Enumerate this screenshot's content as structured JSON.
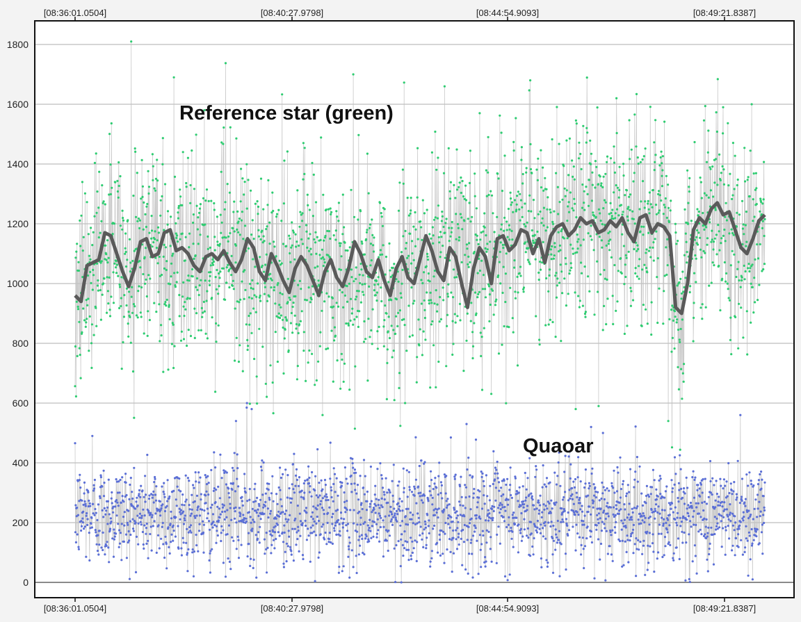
{
  "chart_data": {
    "type": "scatter",
    "title": "",
    "xlabel": "",
    "ylabel": "",
    "ylim": [
      0,
      1900
    ],
    "y_ticks": [
      0,
      200,
      400,
      600,
      800,
      1000,
      1200,
      1400,
      1600,
      1800
    ],
    "time_labels": [
      "[08:36:01.0504]",
      "[08:40:27.9798]",
      "[08:44:54.9093]",
      "[08:49:21.8387]"
    ],
    "grid": true,
    "annotations": [
      {
        "text": "Reference star (green)",
        "series": "reference"
      },
      {
        "text": "Quaoar",
        "series": "target"
      }
    ],
    "series": [
      {
        "key": "reference",
        "color": "#2ecc71",
        "kind": "points",
        "mean_profile": [
          [
            0,
            960
          ],
          [
            30,
            1070
          ],
          [
            55,
            1160
          ],
          [
            80,
            1000
          ],
          [
            110,
            1150
          ],
          [
            140,
            1040
          ],
          [
            170,
            1100
          ],
          [
            200,
            1060
          ],
          [
            230,
            1080
          ],
          [
            260,
            1040
          ],
          [
            300,
            980
          ],
          [
            330,
            1070
          ],
          [
            360,
            1020
          ],
          [
            390,
            1000
          ],
          [
            420,
            1080
          ],
          [
            450,
            960
          ],
          [
            480,
            1060
          ],
          [
            510,
            1010
          ],
          [
            540,
            1150
          ],
          [
            570,
            1060
          ],
          [
            585,
            990
          ],
          [
            600,
            1130
          ],
          [
            620,
            1100
          ],
          [
            640,
            1180
          ],
          [
            660,
            1150
          ],
          [
            700,
            1190
          ],
          [
            740,
            1220
          ],
          [
            770,
            1200
          ],
          [
            800,
            1210
          ],
          [
            820,
            1170
          ],
          [
            840,
            1220
          ],
          [
            860,
            940
          ],
          [
            870,
            900
          ],
          [
            880,
            1160
          ],
          [
            900,
            1230
          ],
          [
            920,
            1250
          ],
          [
            940,
            1130
          ],
          [
            960,
            1110
          ],
          [
            990,
            1220
          ]
        ],
        "noise_sd": 170,
        "outliers_high": [
          1810,
          1660,
          1620,
          1600,
          1700,
          1690,
          1680,
          1590,
          1580,
          1570
        ],
        "outliers_low": [
          540,
          560,
          580,
          590,
          600,
          610
        ]
      },
      {
        "key": "target",
        "color": "#5b6fd6",
        "kind": "points",
        "mean_profile": [
          [
            0,
            230
          ],
          [
            990,
            230
          ]
        ],
        "noise_sd": 85,
        "outliers_high": [
          600,
          585,
          580,
          560,
          540,
          530,
          520,
          500,
          490
        ],
        "outliers_low": [
          0,
          10,
          20,
          25
        ]
      },
      {
        "key": "reference_running_mean",
        "color": "#5a5a5a",
        "kind": "line",
        "values": [
          960,
          940,
          1060,
          1070,
          1080,
          1170,
          1160,
          1100,
          1040,
          990,
          1050,
          1140,
          1150,
          1090,
          1100,
          1170,
          1180,
          1110,
          1120,
          1100,
          1060,
          1040,
          1090,
          1100,
          1080,
          1110,
          1070,
          1040,
          1080,
          1150,
          1120,
          1040,
          1010,
          1100,
          1060,
          1010,
          970,
          1050,
          1090,
          1060,
          1010,
          960,
          1040,
          1080,
          1020,
          990,
          1050,
          1140,
          1100,
          1040,
          1020,
          1080,
          1010,
          960,
          1050,
          1090,
          1020,
          1000,
          1080,
          1160,
          1110,
          1040,
          1010,
          1120,
          1090,
          1000,
          920,
          1050,
          1120,
          1090,
          1000,
          1150,
          1160,
          1110,
          1130,
          1180,
          1170,
          1100,
          1150,
          1070,
          1160,
          1190,
          1200,
          1160,
          1180,
          1220,
          1200,
          1210,
          1170,
          1180,
          1210,
          1190,
          1220,
          1170,
          1140,
          1220,
          1230,
          1170,
          1200,
          1190,
          1160,
          920,
          900,
          1000,
          1180,
          1220,
          1200,
          1250,
          1270,
          1230,
          1240,
          1180,
          1120,
          1100,
          1150,
          1210,
          1230
        ]
      }
    ]
  }
}
